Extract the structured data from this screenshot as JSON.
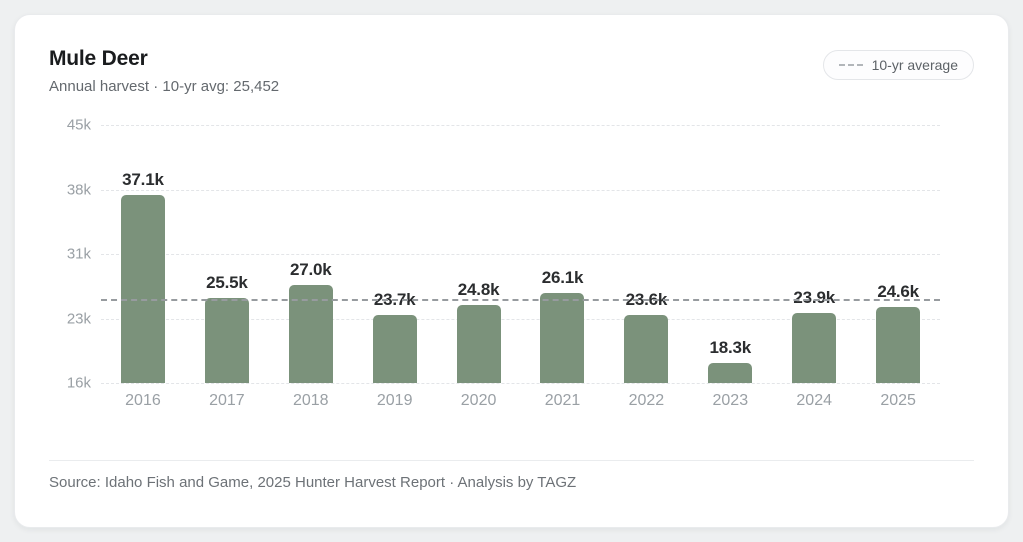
{
  "header": {
    "title": "Mule Deer",
    "subtitle": "Annual harvest · 10-yr avg: 25,452",
    "legend": {
      "label": "10-yr average"
    }
  },
  "chart_data": {
    "type": "bar",
    "title": "Mule Deer",
    "subtitle": "Annual harvest · 10-yr avg: 25,452",
    "categories": [
      "2016",
      "2017",
      "2018",
      "2019",
      "2020",
      "2021",
      "2022",
      "2023",
      "2024",
      "2025"
    ],
    "values": [
      37100,
      25500,
      27000,
      23700,
      24800,
      26100,
      23600,
      18300,
      23900,
      24600
    ],
    "value_labels": [
      "37.1k",
      "25.5k",
      "27.0k",
      "23.7k",
      "24.8k",
      "26.1k",
      "23.6k",
      "18.3k",
      "23.9k",
      "24.6k"
    ],
    "average": 25452,
    "average_label": "10-yr average",
    "xlabel": "",
    "ylabel": "",
    "ylim": [
      16000,
      45000
    ],
    "yticks": [
      {
        "label": "45k",
        "value": 45000
      },
      {
        "label": "38k",
        "value": 37750
      },
      {
        "label": "31k",
        "value": 30500
      },
      {
        "label": "23k",
        "value": 23250
      },
      {
        "label": "16k",
        "value": 16000
      }
    ],
    "grid": "horizontal-dashed",
    "legend_position": "top-right",
    "colors": {
      "bar": "#7b927b",
      "average_line": "#979b9f",
      "gridline": "#e3e5e8",
      "value_label": "#2b2d2f",
      "axis_label": "#9aa0a5"
    }
  },
  "footer": {
    "source": "Source: Idaho Fish and Game, 2025 Hunter Harvest Report · Analysis by TAGZ"
  }
}
